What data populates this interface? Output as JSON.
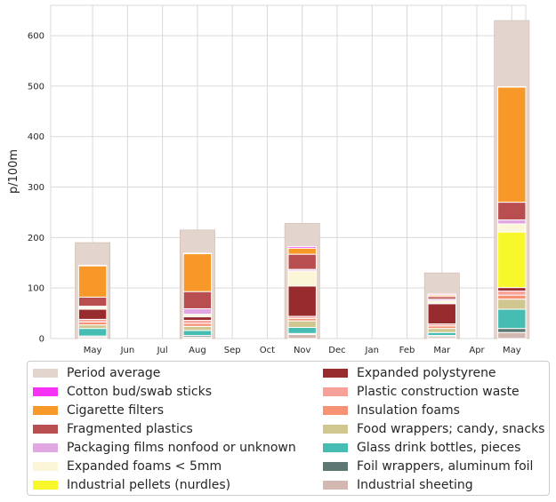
{
  "chart_data": {
    "type": "bar",
    "stacked": true,
    "ylabel": "p/100m",
    "ylim": [
      0,
      660
    ],
    "yticks": [
      0,
      100,
      200,
      300,
      400,
      500,
      600
    ],
    "grid": true,
    "legend_position": "bottom",
    "categories": [
      "May",
      "Jun",
      "Jul",
      "Aug",
      "Sep",
      "Oct",
      "Nov",
      "Dec",
      "Jan",
      "Feb",
      "Mar",
      "Apr",
      "May"
    ],
    "period_average": {
      "name": "Period average",
      "color": "#e3d5cd",
      "values": [
        190,
        0,
        0,
        215,
        0,
        0,
        228,
        0,
        0,
        0,
        130,
        0,
        630
      ]
    },
    "series": [
      {
        "name": "Industrial sheeting",
        "color": "#d3b8b2",
        "values": [
          3,
          0,
          0,
          3,
          0,
          0,
          8,
          0,
          0,
          0,
          4,
          0,
          12
        ]
      },
      {
        "name": "Foil wrappers, aluminum foil",
        "color": "#5d7772",
        "values": [
          2,
          0,
          0,
          3,
          0,
          0,
          2,
          0,
          0,
          0,
          2,
          0,
          8
        ]
      },
      {
        "name": "Glass drink bottles, pieces",
        "color": "#46bcb3",
        "values": [
          15,
          0,
          0,
          10,
          0,
          0,
          12,
          0,
          0,
          0,
          6,
          0,
          38
        ]
      },
      {
        "name": "Food wrappers; candy, snacks",
        "color": "#cfc690",
        "values": [
          7,
          0,
          0,
          8,
          0,
          0,
          13,
          0,
          0,
          0,
          8,
          0,
          20
        ]
      },
      {
        "name": "Insulation foams",
        "color": "#f79275",
        "values": [
          6,
          0,
          0,
          6,
          0,
          0,
          5,
          0,
          0,
          0,
          5,
          0,
          8
        ]
      },
      {
        "name": "Plastic construction waste",
        "color": "#f8a198",
        "values": [
          5,
          0,
          0,
          6,
          0,
          0,
          4,
          0,
          0,
          0,
          4,
          0,
          8
        ]
      },
      {
        "name": "Expanded polystyrene",
        "color": "#972b2e",
        "values": [
          20,
          0,
          0,
          7,
          0,
          0,
          60,
          0,
          0,
          0,
          40,
          0,
          7
        ]
      },
      {
        "name": "Industrial pellets (nurdles)",
        "color": "#f7f72c",
        "values": [
          0,
          0,
          0,
          0,
          0,
          0,
          0,
          0,
          0,
          0,
          1,
          0,
          110
        ]
      },
      {
        "name": "Expanded foams < 5mm",
        "color": "#fcf6d9",
        "values": [
          4,
          0,
          0,
          5,
          0,
          0,
          30,
          0,
          0,
          0,
          5,
          0,
          16
        ]
      },
      {
        "name": "Packaging films nonfood or unknown",
        "color": "#e1a7e2",
        "values": [
          2,
          0,
          0,
          11,
          0,
          0,
          3,
          0,
          0,
          0,
          3,
          0,
          8
        ]
      },
      {
        "name": "Fragmented plastics",
        "color": "#b84e50",
        "values": [
          18,
          0,
          0,
          34,
          0,
          0,
          30,
          0,
          0,
          0,
          5,
          0,
          35
        ]
      },
      {
        "name": "Cigarette filters",
        "color": "#f89828",
        "values": [
          62,
          0,
          0,
          75,
          0,
          0,
          12,
          0,
          0,
          0,
          3,
          0,
          228
        ]
      },
      {
        "name": "Cotton bud/swab sticks",
        "color": "#f631f6",
        "values": [
          1,
          0,
          0,
          1,
          0,
          0,
          3,
          0,
          0,
          0,
          2,
          0,
          1
        ]
      }
    ],
    "legend_order": [
      "Period average",
      "Cotton bud/swab sticks",
      "Cigarette filters",
      "Fragmented plastics",
      "Packaging films nonfood or unknown",
      "Expanded foams < 5mm",
      "Industrial pellets (nurdles)",
      "Expanded polystyrene",
      "Plastic construction waste",
      "Insulation foams",
      "Food wrappers; candy, snacks",
      "Glass drink bottles, pieces",
      "Foil wrappers, aluminum foil",
      "Industrial sheeting"
    ]
  }
}
